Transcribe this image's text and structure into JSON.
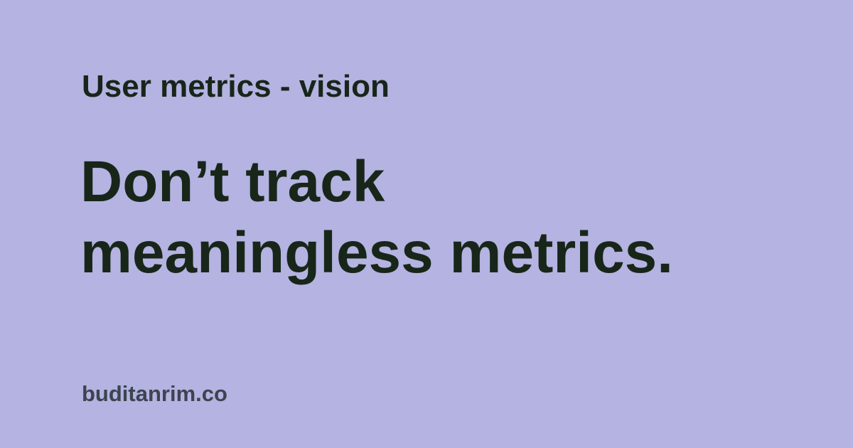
{
  "background_color": "#b5b3e1",
  "text_color": "#18261a",
  "site_color": "#3d4450",
  "category": "User metrics - vision",
  "headline": {
    "line1": "Don’t track",
    "line2": "meaningless metrics."
  },
  "site": "buditanrim.co"
}
